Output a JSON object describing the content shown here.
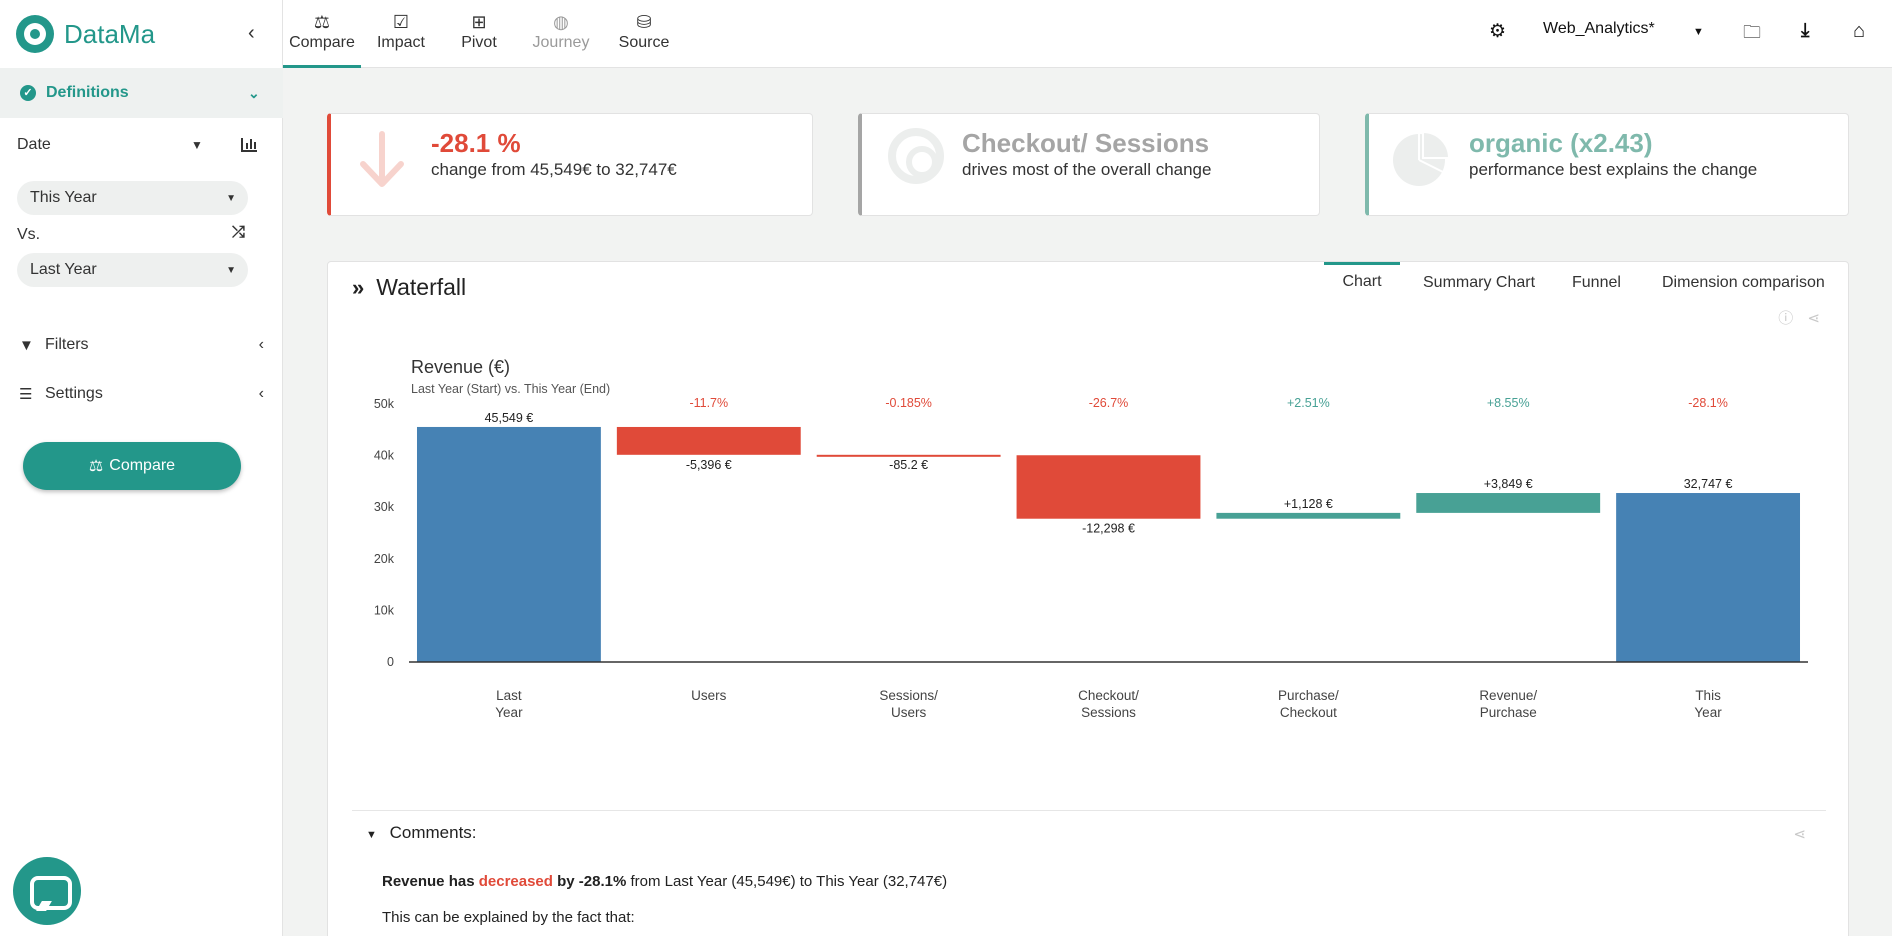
{
  "app": {
    "name": "DataMa"
  },
  "topnav": {
    "items": [
      {
        "label": "Compare",
        "icon": "scale-icon",
        "state": "active"
      },
      {
        "label": "Impact",
        "icon": "checkbox-icon",
        "state": "normal"
      },
      {
        "label": "Pivot",
        "icon": "table-icon",
        "state": "normal"
      },
      {
        "label": "Journey",
        "icon": "globe-icon",
        "state": "disabled"
      },
      {
        "label": "Source",
        "icon": "database-icon",
        "state": "normal"
      }
    ],
    "dataset": "Web_Analytics*"
  },
  "sidebar": {
    "definitions_label": "Definitions",
    "date_label": "Date",
    "period_current": "This Year",
    "vs_label": "Vs.",
    "period_compare": "Last Year",
    "filters_label": "Filters",
    "settings_label": "Settings",
    "compare_button": "Compare"
  },
  "kpis": {
    "change": {
      "value": "-28.1 %",
      "text": "change from 45,549€ to 32,747€",
      "color": "#e04a39"
    },
    "driver": {
      "value": "Checkout/ Sessions",
      "text": "drives most of the overall change",
      "color": "#a5a5a5"
    },
    "dimension": {
      "value": "organic (x2.43)",
      "text": "performance best explains the change",
      "color": "#7fb9ac"
    }
  },
  "panel": {
    "title": "Waterfall",
    "tabs": [
      "Chart",
      "Summary Chart",
      "Funnel",
      "Dimension comparison"
    ],
    "active_tab": "Chart"
  },
  "chart_data": {
    "type": "bar",
    "title": "Revenue (€)",
    "subtitle": "Last Year (Start) vs. This Year (End)",
    "ylim": [
      0,
      50000
    ],
    "yticks": [
      0,
      10000,
      20000,
      30000,
      40000,
      50000
    ],
    "ytick_labels": [
      "0",
      "10k",
      "20k",
      "30k",
      "40k",
      "50k"
    ],
    "categories": [
      [
        "Last",
        "Year"
      ],
      [
        "Users"
      ],
      [
        "Sessions/",
        "Users"
      ],
      [
        "Checkout/",
        "Sessions"
      ],
      [
        "Purchase/",
        "Checkout"
      ],
      [
        "Revenue/",
        "Purchase"
      ],
      [
        "This",
        "Year"
      ]
    ],
    "bars": [
      {
        "kind": "total",
        "start": 0,
        "end": 45549,
        "label": "45,549 €",
        "pct": "",
        "color": "#4682b4"
      },
      {
        "kind": "delta",
        "start": 45549,
        "end": 40153,
        "label": "-5,396 €",
        "pct": "-11.7%",
        "color": "#e04a39"
      },
      {
        "kind": "delta",
        "start": 40153,
        "end": 40068,
        "label": "-85.2 €",
        "pct": "-0.185%",
        "color": "#e04a39"
      },
      {
        "kind": "delta",
        "start": 40068,
        "end": 27770,
        "label": "-12,298 €",
        "pct": "-26.7%",
        "color": "#e04a39"
      },
      {
        "kind": "delta",
        "start": 27770,
        "end": 28898,
        "label": "+1,128 €",
        "pct": "+2.51%",
        "color": "#48a195"
      },
      {
        "kind": "delta",
        "start": 28898,
        "end": 32747,
        "label": "+3,849 €",
        "pct": "+8.55%",
        "color": "#48a195"
      },
      {
        "kind": "total",
        "start": 0,
        "end": 32747,
        "label": "32,747 €",
        "pct": "-28.1%",
        "color": "#4682b4"
      }
    ],
    "pct_colors": {
      "negative": "#e04a39",
      "positive": "#48a195"
    }
  },
  "comments": {
    "heading": "Comments:",
    "line1_pre": "Revenue has",
    "line1_word": "decreased",
    "line1_post": "by -28.1%",
    "line1_rest": "from Last Year (45,549€) to This Year (32,747€)",
    "line2": "This can be explained by the fact that:"
  }
}
